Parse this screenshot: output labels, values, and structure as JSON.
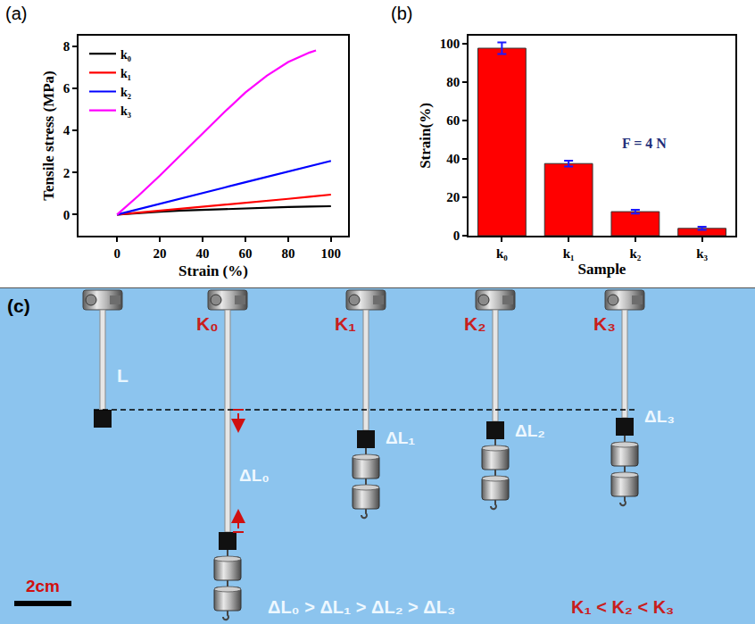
{
  "chart_data": [
    {
      "type": "line",
      "panel_label": "(a)",
      "x_label": "Strain (%)",
      "y_label": "Tensile stress (MPa)",
      "xlim": [
        -18,
        108
      ],
      "xticks": [
        0,
        20,
        40,
        60,
        80,
        100
      ],
      "ylim": [
        -1,
        8.5
      ],
      "yticks": [
        0,
        2,
        4,
        6,
        8
      ],
      "grid": false,
      "legend": "upper left",
      "series": [
        {
          "name": "k₀",
          "color": "#000000",
          "x": [
            0,
            10,
            20,
            30,
            40,
            50,
            60,
            70,
            80,
            90,
            100
          ],
          "values": [
            0,
            0.08,
            0.14,
            0.19,
            0.23,
            0.27,
            0.3,
            0.33,
            0.36,
            0.38,
            0.4
          ]
        },
        {
          "name": "k₁",
          "color": "#ff0000",
          "x": [
            0,
            10,
            20,
            30,
            40,
            50,
            60,
            70,
            80,
            90,
            100
          ],
          "values": [
            0,
            0.09,
            0.18,
            0.27,
            0.36,
            0.45,
            0.55,
            0.65,
            0.75,
            0.85,
            0.95
          ]
        },
        {
          "name": "k₂",
          "color": "#0000ff",
          "x": [
            0,
            10,
            20,
            30,
            40,
            50,
            60,
            70,
            80,
            90,
            100
          ],
          "values": [
            0,
            0.25,
            0.5,
            0.76,
            1.02,
            1.28,
            1.54,
            1.79,
            2.04,
            2.3,
            2.55
          ]
        },
        {
          "name": "k₃",
          "color": "#ff00ff",
          "x": [
            0,
            10,
            20,
            30,
            40,
            50,
            60,
            70,
            80,
            90,
            93
          ],
          "values": [
            0,
            0.9,
            1.85,
            2.85,
            3.85,
            4.85,
            5.8,
            6.6,
            7.25,
            7.7,
            7.8
          ]
        }
      ]
    },
    {
      "type": "bar",
      "panel_label": "(b)",
      "x_label": "Sample",
      "y_label": "Strain(%)",
      "annotations": [
        "F = 4 N"
      ],
      "categories": [
        "k₀",
        "k₁",
        "k₂",
        "k₃"
      ],
      "values": [
        97.5,
        37.5,
        12.5,
        3.8
      ],
      "error": [
        3,
        1.5,
        1,
        0.8
      ],
      "color": "#ff0000",
      "ylim": [
        0,
        104
      ],
      "yticks": [
        0,
        20,
        40,
        60,
        80,
        100
      ],
      "grid": false
    }
  ],
  "panel_c": {
    "panel_label": "(c)",
    "specimens": [
      {
        "label": "L"
      },
      {
        "label": "K₀",
        "extension": "ΔL₀"
      },
      {
        "label": "K₁",
        "extension": "ΔL₁"
      },
      {
        "label": "K₂",
        "extension": "ΔL₂"
      },
      {
        "label": "K₃",
        "extension": "ΔL₃"
      }
    ],
    "extension_relation": "ΔL₀ > ΔL₁ > ΔL₂ > ΔL₃",
    "stiffness_relation": "K₁ < K₂ < K₃",
    "scale_bar": "2cm"
  }
}
